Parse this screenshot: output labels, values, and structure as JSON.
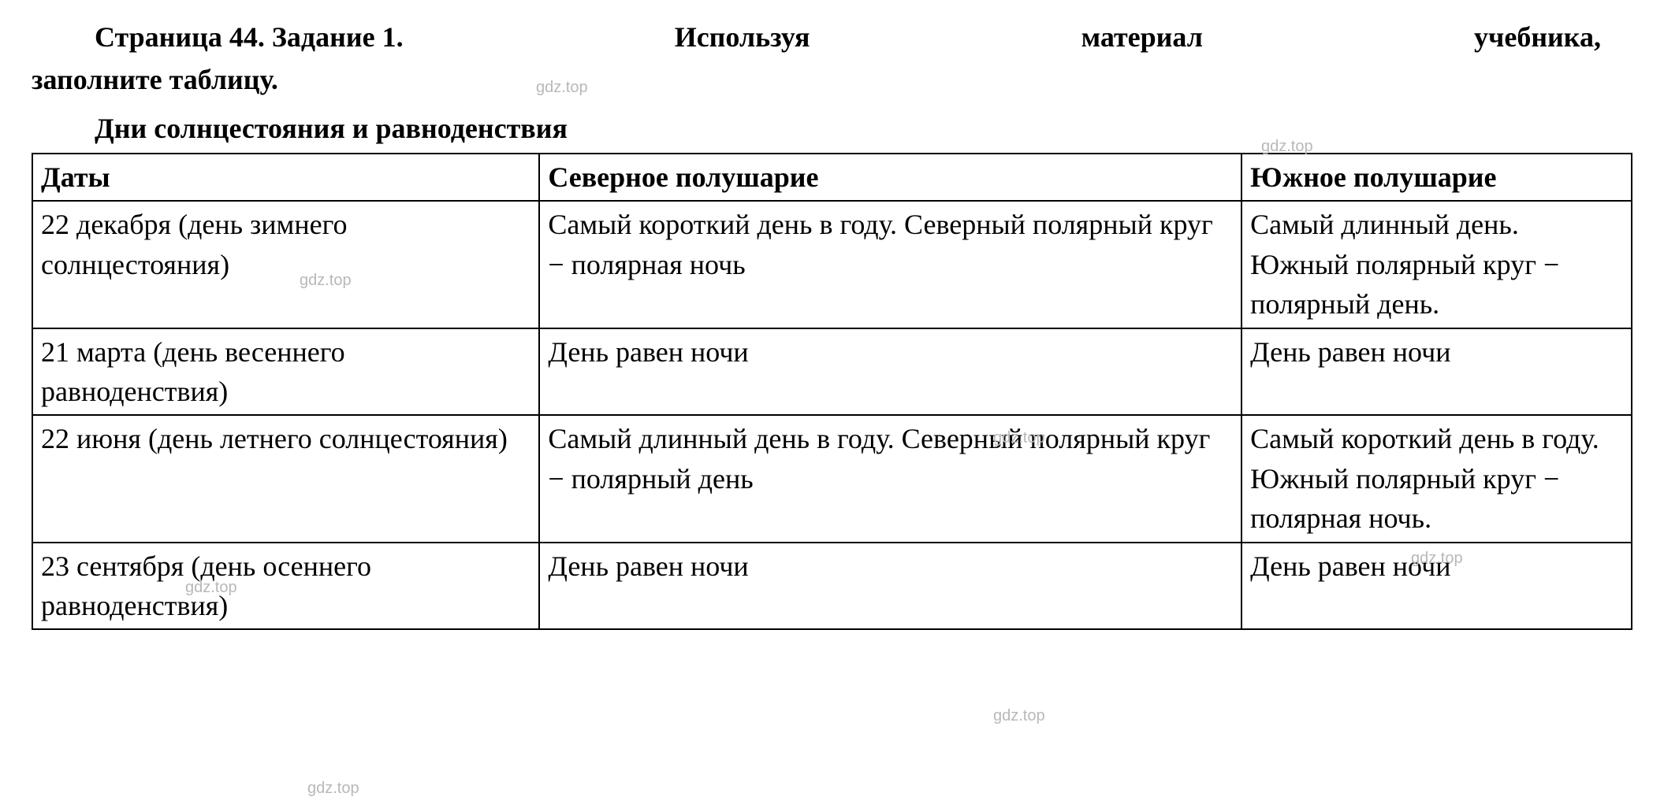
{
  "header": {
    "line1_parts": {
      "p1": "Страница 44. Задание 1.",
      "p2": "Используя",
      "p3": "материал",
      "p4": "учебника,"
    },
    "line2": "заполните таблицу.",
    "subtitle": "Дни солнцестояния и равноденствия"
  },
  "watermark_text": "gdz.top",
  "table": {
    "headers": {
      "date": "Даты",
      "north": "Северное полушарие",
      "south": "Южное полушарие"
    },
    "rows": [
      {
        "date": "22 декабря (день зимнего солнцестояния)",
        "north": "Самый короткий день в году. Северный полярный круг − полярная ночь",
        "south": "Самый длинный день. Южный полярный круг − полярный день."
      },
      {
        "date": "21 марта (день весеннего равноденствия)",
        "north": "День равен ночи",
        "south": "День равен ночи"
      },
      {
        "date": "22 июня (день летнего солнцестояния)",
        "north": "Самый длинный день в году. Северный полярный круг − полярный день",
        "south": "Самый короткий день в году. Южный полярный круг − полярная ночь."
      },
      {
        "date": "23 сентября (день осеннего равноденствия)",
        "north": "День равен ночи",
        "south": "День равен ночи"
      }
    ]
  },
  "styling": {
    "background_color": "#ffffff",
    "text_color": "#000000",
    "watermark_color": "#b8b8b8",
    "border_color": "#000000",
    "font_family": "Times New Roman",
    "base_fontsize": 36,
    "watermark_fontsize": 20,
    "border_width": 2
  }
}
